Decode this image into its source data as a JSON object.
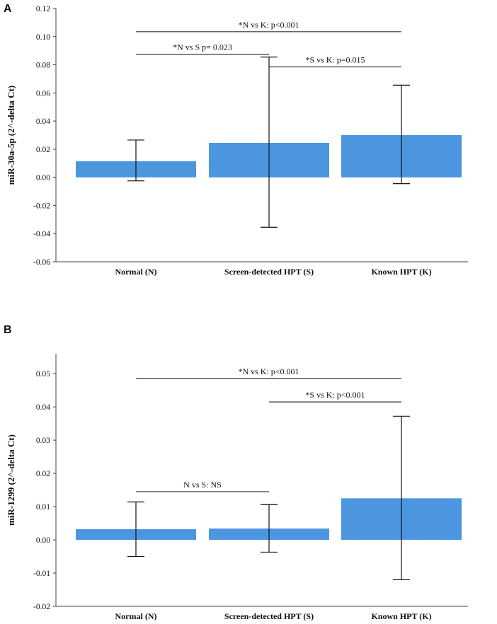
{
  "chart_data": [
    {
      "type": "bar",
      "panel": "A",
      "title": "",
      "xlabel": "",
      "ylabel": "miR-30a-5p (2^-delta Ct)",
      "ylim": [
        -0.06,
        0.12
      ],
      "yticks": [
        -0.06,
        -0.04,
        -0.02,
        0.0,
        0.02,
        0.04,
        0.06,
        0.08,
        0.1,
        0.12
      ],
      "ytick_labels": [
        "-0.06",
        "-0.04",
        "-0.02",
        "0.00",
        "0.02",
        "0.04",
        "0.06",
        "0.08",
        "0.10",
        "0.12"
      ],
      "categories": [
        "Normal (N)",
        "Screen-detected HPT (S)",
        "Known HPT (K)"
      ],
      "values": [
        0.0115,
        0.0245,
        0.03
      ],
      "error_low": [
        -0.0025,
        -0.0355,
        -0.0045
      ],
      "error_high": [
        0.0265,
        0.0855,
        0.0655
      ],
      "comparisons": [
        {
          "from": 0,
          "to": 2,
          "y": 0.1035,
          "label": "*N vs K: p<0.001"
        },
        {
          "from": 0,
          "to": 1,
          "y": 0.0875,
          "label": "*N vs S p= 0.023"
        },
        {
          "from": 1,
          "to": 2,
          "y": 0.0785,
          "label": "*S vs K: p=0.015"
        }
      ]
    },
    {
      "type": "bar",
      "panel": "B",
      "title": "",
      "xlabel": "",
      "ylabel": "miR-1299  (2^-delta Ct)",
      "ylim": [
        -0.02,
        0.056
      ],
      "yticks": [
        -0.02,
        -0.01,
        0.0,
        0.01,
        0.02,
        0.03,
        0.04,
        0.05
      ],
      "ytick_labels": [
        "-0.02",
        "-0.01",
        "0.00",
        "0.01",
        "0.02",
        "0.03",
        "0.04",
        "0.05"
      ],
      "categories": [
        "Normal (N)",
        "Screen-detected HPT (S)",
        "Known HPT (K)"
      ],
      "values": [
        0.0032,
        0.0034,
        0.0125
      ],
      "error_low": [
        -0.005,
        -0.0037,
        -0.012
      ],
      "error_high": [
        0.0114,
        0.0106,
        0.0372
      ],
      "comparisons": [
        {
          "from": 0,
          "to": 2,
          "y": 0.0485,
          "label": "*N vs K: p<0.001"
        },
        {
          "from": 1,
          "to": 2,
          "y": 0.0415,
          "label": "*S vs K: p<0.001"
        },
        {
          "from": 0,
          "to": 1,
          "y": 0.0145,
          "label": "N vs S: NS"
        }
      ]
    }
  ]
}
